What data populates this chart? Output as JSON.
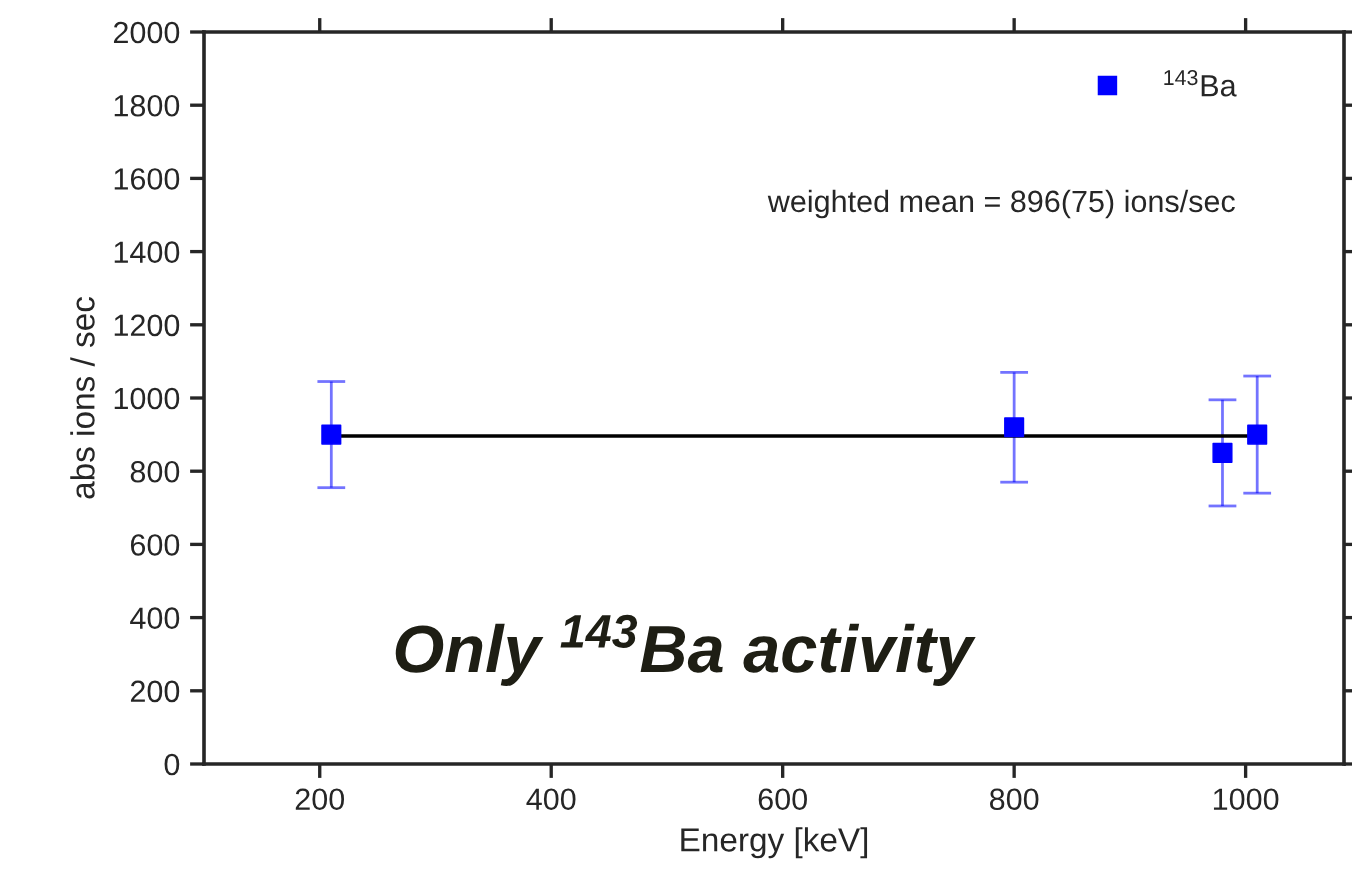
{
  "chart_data": {
    "type": "scatter",
    "xlabel": "Energy [keV]",
    "ylabel": "abs ions / sec",
    "series": [
      {
        "name": "$^{143}$Ba",
        "color": "#0000ff",
        "x": [
          210,
          800,
          980,
          1010
        ],
        "values": [
          900,
          920,
          850,
          900
        ],
        "errors": [
          145,
          150,
          145,
          160
        ],
        "marker": "square"
      },
      {
        "type": "line",
        "color": "#000000",
        "x": [
          210,
          1010
        ],
        "values": [
          896,
          896
        ],
        "marker": "none",
        "line_style": "solid"
      }
    ],
    "xlim": [
      100,
      1085
    ],
    "xticks": [
      200,
      400,
      600,
      800,
      1000
    ],
    "ylim": [
      0,
      2000
    ],
    "yticks": [
      0,
      200,
      400,
      600,
      800,
      1000,
      1200,
      1400,
      1600,
      1800,
      2000
    ],
    "grid": false,
    "legend": "top right",
    "annotations": [
      "weighted mean = 896(75) ions/sec",
      "Only $^{143}$Ba activity"
    ]
  }
}
